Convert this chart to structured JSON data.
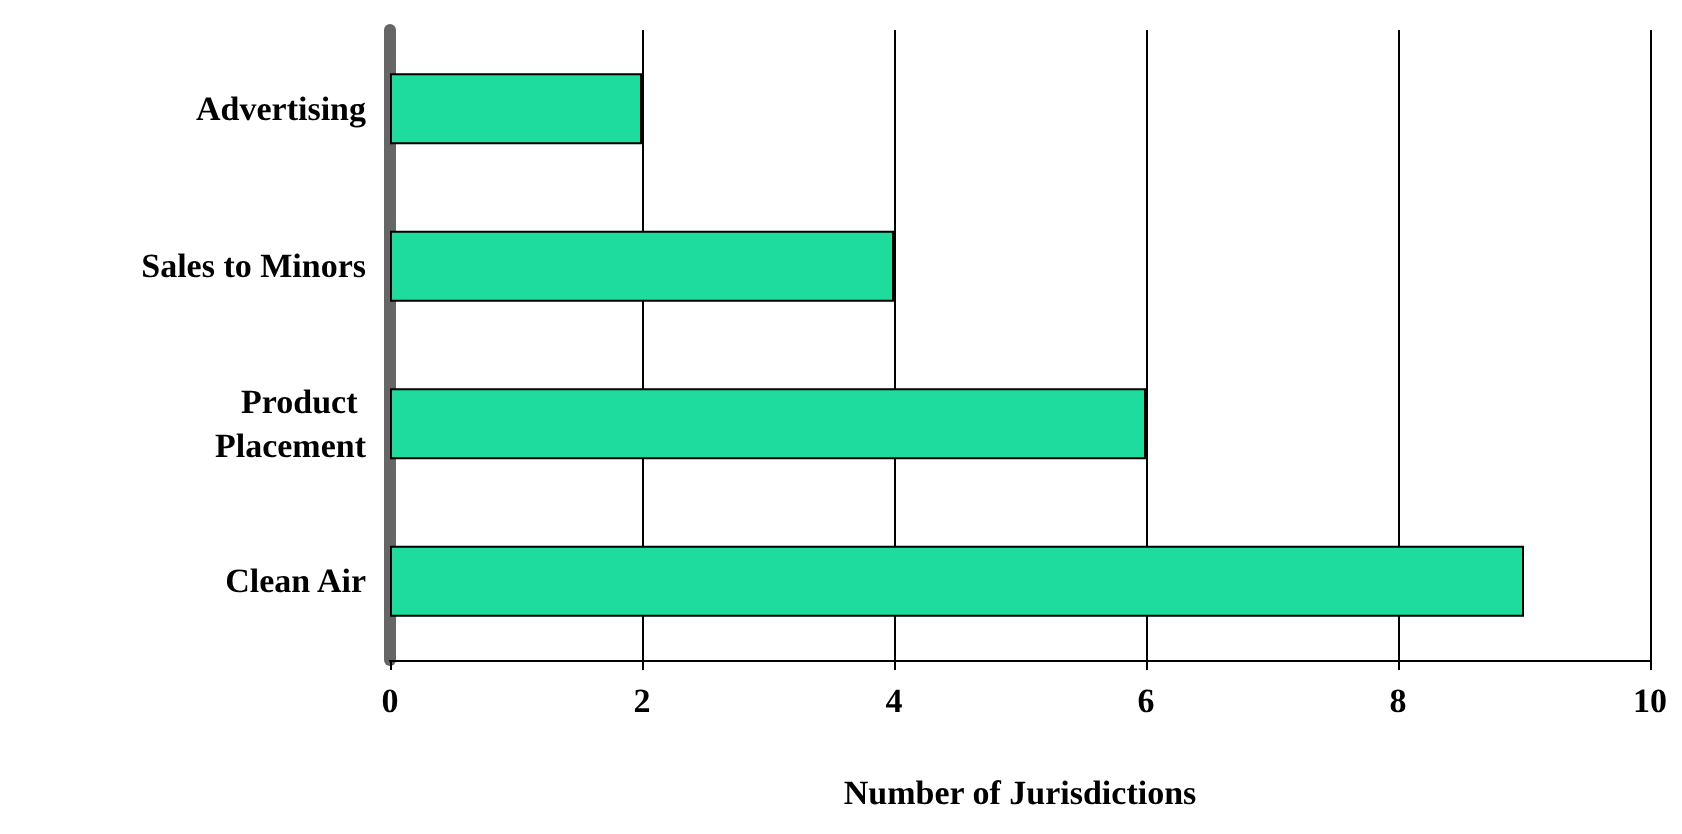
{
  "chart_data": {
    "type": "bar",
    "orientation": "horizontal",
    "xlabel": "Number of Jurisdictions",
    "categories": [
      "Advertising",
      "Sales to Minors",
      "Product Placement",
      "Clean Air"
    ],
    "values": [
      2,
      4,
      6,
      9
    ],
    "color": "#1ddc9e",
    "xlim": [
      0,
      10
    ],
    "xticks": [
      0,
      2,
      4,
      6,
      8,
      10
    ],
    "grid": "x"
  }
}
